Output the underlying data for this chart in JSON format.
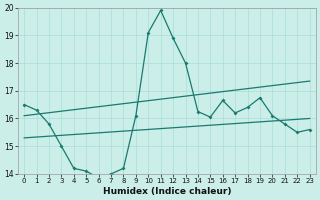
{
  "xlabel": "Humidex (Indice chaleur)",
  "bg_color": "#cbeee9",
  "grid_color": "#a8ddd8",
  "line_color": "#1a7a6e",
  "xlim": [
    -0.5,
    23.5
  ],
  "ylim": [
    14,
    20
  ],
  "xticks": [
    0,
    1,
    2,
    3,
    4,
    5,
    6,
    7,
    8,
    9,
    10,
    11,
    12,
    13,
    14,
    15,
    16,
    17,
    18,
    19,
    20,
    21,
    22,
    23
  ],
  "yticks": [
    14,
    15,
    16,
    17,
    18,
    19,
    20
  ],
  "line1_x": [
    0,
    1,
    2,
    3,
    4,
    5,
    6,
    7,
    8,
    9,
    10,
    11,
    12,
    13,
    14,
    15,
    16,
    17,
    18,
    19,
    20,
    21,
    22,
    23
  ],
  "line1_y": [
    16.5,
    16.3,
    15.8,
    15.0,
    14.2,
    14.1,
    13.85,
    14.0,
    14.2,
    16.1,
    19.1,
    19.9,
    18.9,
    18.0,
    16.25,
    16.05,
    16.65,
    16.2,
    16.4,
    16.75,
    16.1,
    15.8,
    15.5,
    15.6
  ],
  "line2_x": [
    0,
    23
  ],
  "line2_y": [
    16.1,
    17.35
  ],
  "line3_x": [
    0,
    23
  ],
  "line3_y": [
    15.3,
    16.0
  ]
}
